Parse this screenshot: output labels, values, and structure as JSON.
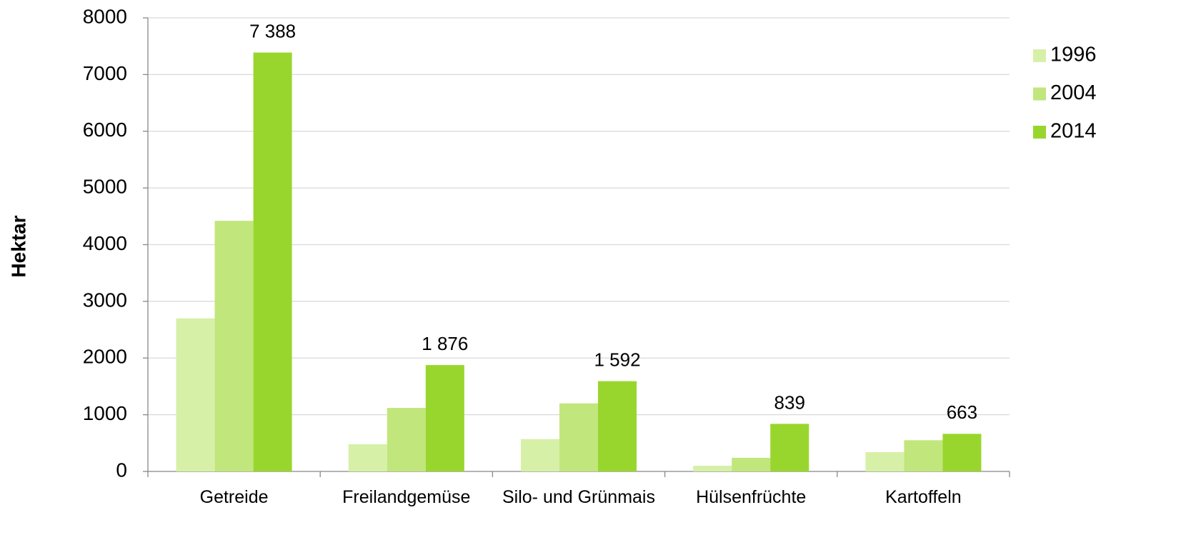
{
  "chart_data": {
    "type": "bar",
    "y_label": "Hektar",
    "categories": [
      "Getreide",
      "Freilandgemüse",
      "Silo- und Grünmais",
      "Hülsenfrüchte",
      "Kartoffeln"
    ],
    "series": [
      {
        "name": "1996",
        "color": "#d7f0a8",
        "values": [
          2700,
          480,
          570,
          100,
          340
        ]
      },
      {
        "name": "2004",
        "color": "#c1e67c",
        "values": [
          4420,
          1120,
          1200,
          240,
          550
        ]
      },
      {
        "name": "2014",
        "color": "#99d62d",
        "values": [
          7388,
          1876,
          1592,
          839,
          663
        ],
        "value_labels": [
          "7 388",
          "1 876",
          "1 592",
          "839",
          "663"
        ]
      }
    ],
    "ylim": [
      0,
      8000
    ],
    "yticks": [
      0,
      1000,
      2000,
      3000,
      4000,
      5000,
      6000,
      7000,
      8000
    ],
    "grid": true,
    "legend": "right"
  }
}
